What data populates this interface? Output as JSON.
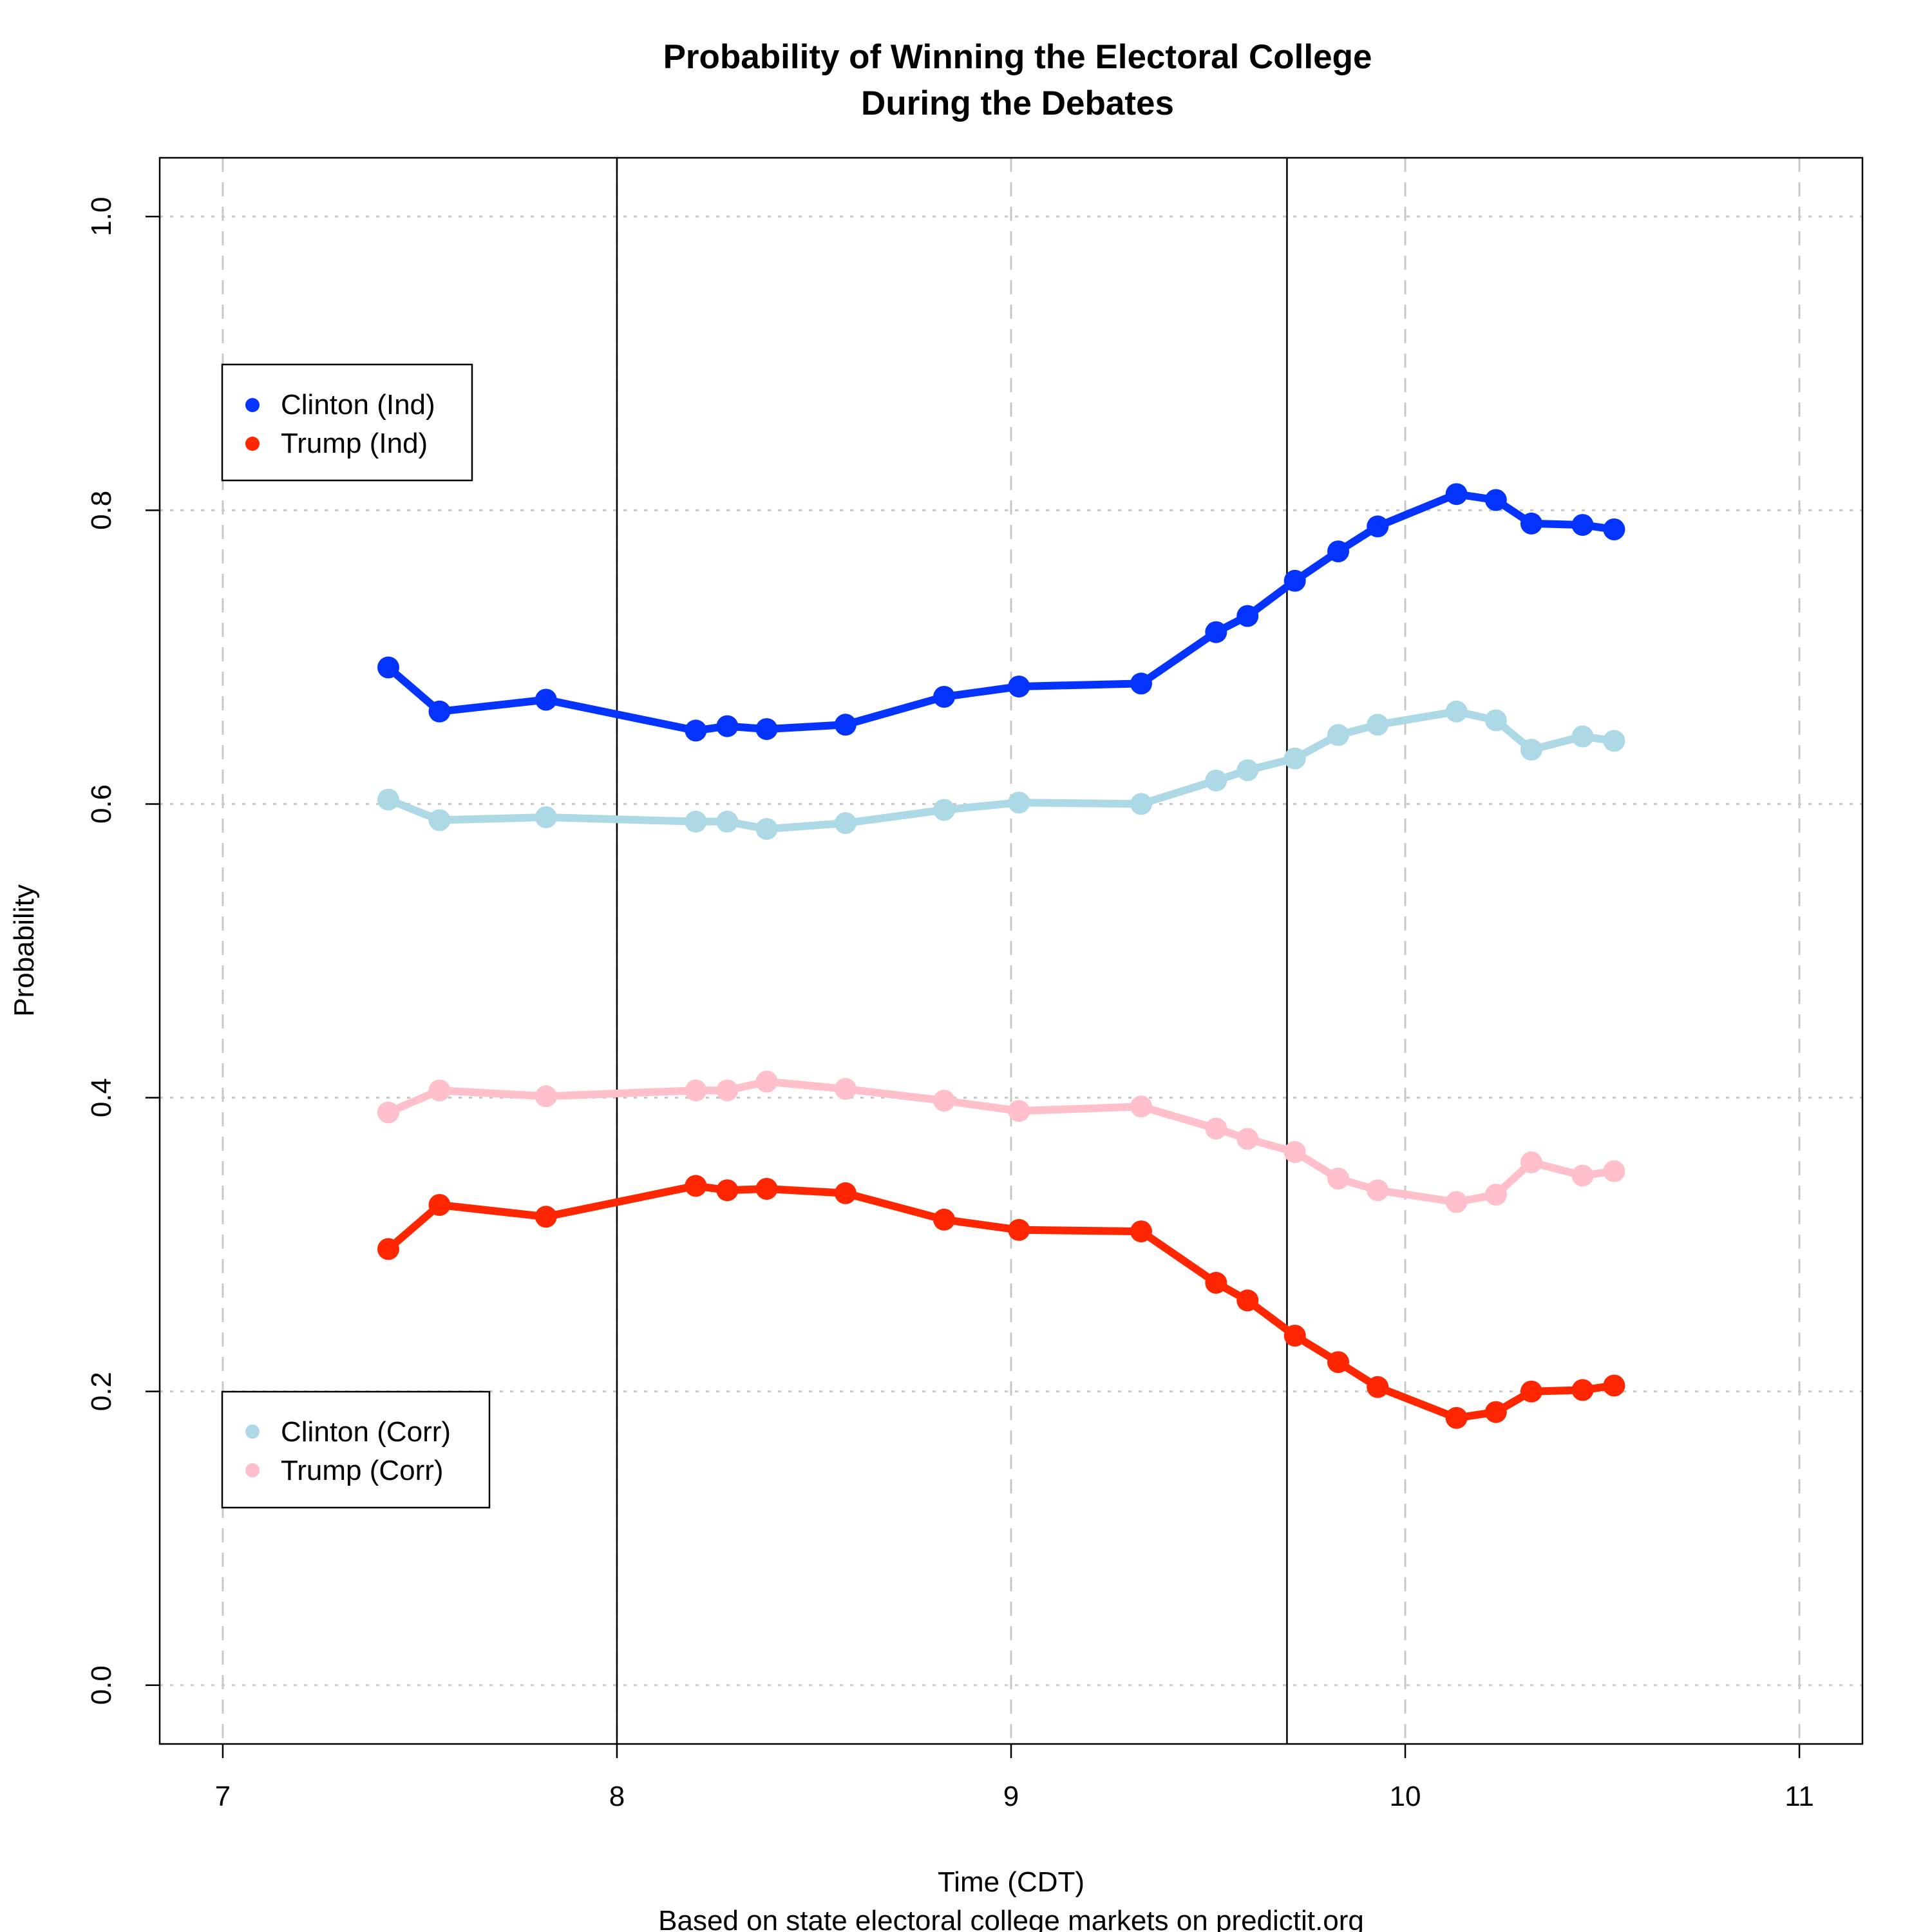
{
  "chart_data": {
    "type": "line",
    "title_lines": [
      "Probability of Winning the Electoral College",
      "During the Debates"
    ],
    "xlabel": "Time (CDT)",
    "caption": "Based on state electoral college markets on predictit.org",
    "ylabel": "Probability",
    "xlim": [
      6.84,
      11.16
    ],
    "ylim": [
      -0.04,
      1.04
    ],
    "xticks": [
      7,
      8,
      9,
      10,
      11
    ],
    "yticks": [
      0.0,
      0.2,
      0.4,
      0.6,
      0.8,
      1.0
    ],
    "ytick_labels": [
      "0.0",
      "0.2",
      "0.4",
      "0.6",
      "0.8",
      "1.0"
    ],
    "grid": true,
    "vlines": [
      8.0,
      9.7
    ],
    "x": [
      7.42,
      7.55,
      7.82,
      8.2,
      8.28,
      8.38,
      8.58,
      8.83,
      9.02,
      9.33,
      9.52,
      9.6,
      9.72,
      9.83,
      9.93,
      10.13,
      10.23,
      10.32,
      10.45,
      10.53
    ],
    "series": [
      {
        "name": "Clinton (Corr)",
        "color": "#ADD8E6",
        "values": [
          0.603,
          0.589,
          0.591,
          0.588,
          0.588,
          0.583,
          0.587,
          0.596,
          0.601,
          0.6,
          0.616,
          0.623,
          0.631,
          0.647,
          0.654,
          0.663,
          0.657,
          0.637,
          0.646,
          0.643
        ]
      },
      {
        "name": "Trump (Corr)",
        "color": "#FFC0CB",
        "values": [
          0.39,
          0.405,
          0.401,
          0.405,
          0.405,
          0.411,
          0.406,
          0.398,
          0.391,
          0.394,
          0.379,
          0.372,
          0.363,
          0.345,
          0.337,
          0.329,
          0.334,
          0.356,
          0.347,
          0.35
        ]
      },
      {
        "name": "Clinton (Ind)",
        "color": "#0433FF",
        "values": [
          0.693,
          0.663,
          0.671,
          0.65,
          0.653,
          0.651,
          0.654,
          0.673,
          0.68,
          0.682,
          0.717,
          0.728,
          0.752,
          0.772,
          0.789,
          0.811,
          0.807,
          0.791,
          0.79,
          0.787
        ]
      },
      {
        "name": "Trump (Ind)",
        "color": "#FF2600",
        "values": [
          0.297,
          0.327,
          0.319,
          0.34,
          0.337,
          0.338,
          0.335,
          0.317,
          0.31,
          0.309,
          0.274,
          0.262,
          0.238,
          0.22,
          0.203,
          0.182,
          0.186,
          0.2,
          0.201,
          0.204
        ]
      }
    ],
    "legends": [
      {
        "placement": "upper-left",
        "entries": [
          "Clinton (Ind)",
          "Trump (Ind)"
        ]
      },
      {
        "placement": "lower-left",
        "entries": [
          "Clinton (Corr)",
          "Trump (Corr)"
        ]
      }
    ]
  }
}
